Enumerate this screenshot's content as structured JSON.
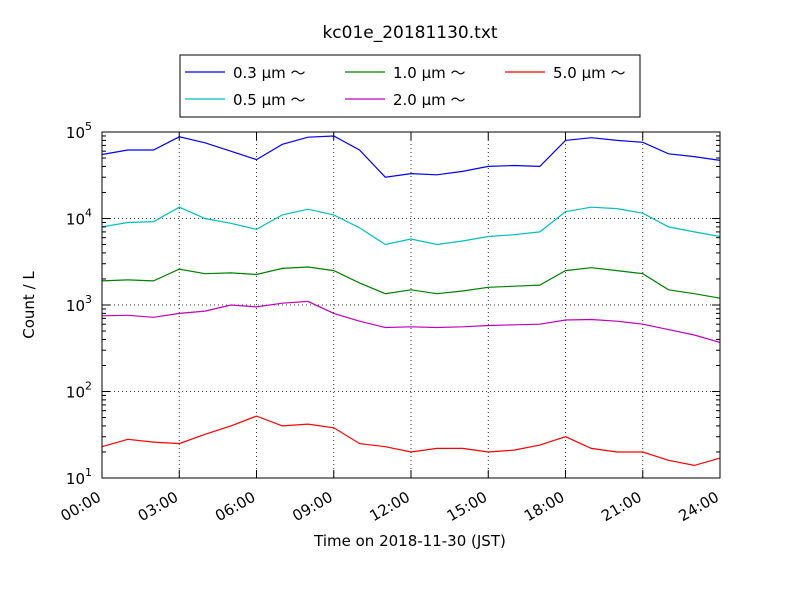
{
  "chart_data": {
    "type": "line",
    "title": "kc01e_20181130.txt",
    "xlabel": "Time on 2018-11-30 (JST)",
    "ylabel": "Count / L",
    "yscale": "log",
    "ylim": [
      10,
      100000
    ],
    "xlim": [
      "2018-11-30 00:00",
      "2018-12-01 00:00"
    ],
    "x_ticks": [
      "00:00",
      "03:00",
      "06:00",
      "09:00",
      "12:00",
      "15:00",
      "18:00",
      "21:00",
      "24:00"
    ],
    "y_ticks": [
      {
        "base": "10",
        "exp": "1"
      },
      {
        "base": "10",
        "exp": "2"
      },
      {
        "base": "10",
        "exp": "3"
      },
      {
        "base": "10",
        "exp": "4"
      },
      {
        "base": "10",
        "exp": "5"
      }
    ],
    "grid": true,
    "legend_position": "top-center",
    "x": [
      "00:00",
      "01:00",
      "02:00",
      "03:00",
      "04:00",
      "05:00",
      "06:00",
      "07:00",
      "08:00",
      "09:00",
      "10:00",
      "11:00",
      "12:00",
      "13:00",
      "14:00",
      "15:00",
      "16:00",
      "17:00",
      "18:00",
      "19:00",
      "20:00",
      "21:00",
      "22:00",
      "23:00",
      "24:00"
    ],
    "series": [
      {
        "name": "0.3 μm ～",
        "color": "#0000ff",
        "values": [
          55000,
          62000,
          62000,
          88000,
          75000,
          60000,
          48000,
          72000,
          87000,
          90000,
          62000,
          30000,
          33000,
          32000,
          35000,
          40000,
          41000,
          40000,
          80000,
          86000,
          80000,
          76000,
          56000,
          52000,
          47000
        ]
      },
      {
        "name": "0.5 μm ～",
        "color": "#00bfbf",
        "values": [
          8000,
          9000,
          9200,
          13500,
          10000,
          8800,
          7500,
          11000,
          12800,
          11000,
          7800,
          5000,
          5800,
          5000,
          5500,
          6200,
          6500,
          7000,
          12000,
          13500,
          13000,
          11500,
          8000,
          7000,
          6200
        ]
      },
      {
        "name": "1.0 μm ～",
        "color": "#008000",
        "values": [
          1900,
          1950,
          1900,
          2600,
          2300,
          2350,
          2250,
          2650,
          2750,
          2500,
          1800,
          1350,
          1500,
          1350,
          1450,
          1600,
          1650,
          1700,
          2500,
          2700,
          2500,
          2300,
          1500,
          1350,
          1200
        ]
      },
      {
        "name": "2.0 μm ～",
        "color": "#bf00bf",
        "values": [
          750,
          760,
          720,
          800,
          850,
          1000,
          950,
          1050,
          1100,
          800,
          650,
          550,
          560,
          550,
          560,
          580,
          590,
          600,
          670,
          680,
          650,
          600,
          520,
          450,
          370
        ]
      },
      {
        "name": "5.0 μm ～",
        "color": "#ff0000",
        "values": [
          23,
          28,
          26,
          25,
          32,
          40,
          52,
          40,
          42,
          38,
          25,
          23,
          20,
          22,
          22,
          20,
          21,
          24,
          30,
          22,
          20,
          20,
          16,
          14,
          17
        ]
      }
    ]
  }
}
